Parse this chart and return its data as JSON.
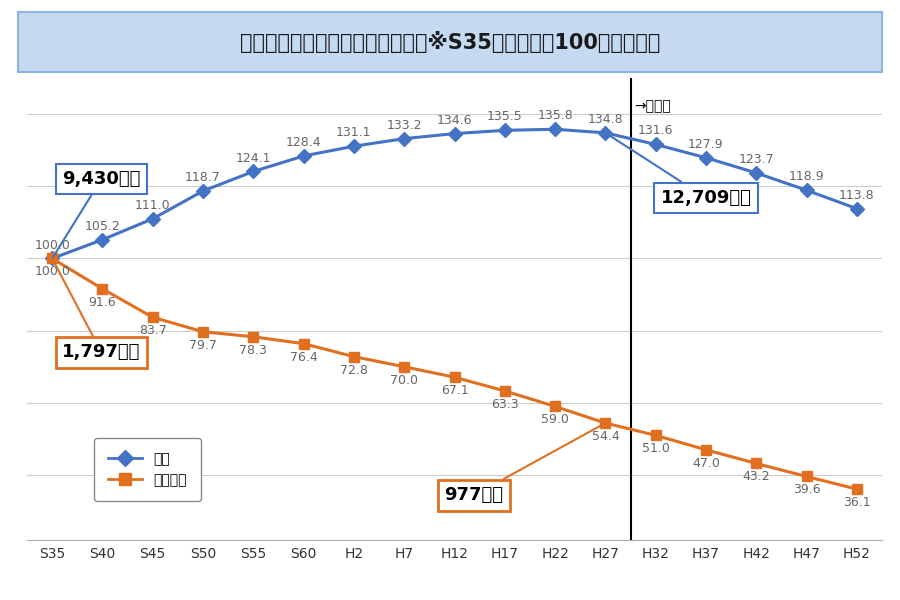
{
  "title": "人口の推移（全国・過疎地域）　※S35年の人口を100とした場合",
  "x_labels": [
    "S35",
    "S40",
    "S45",
    "S50",
    "S55",
    "S60",
    "H2",
    "H7",
    "H12",
    "H17",
    "H22",
    "H27",
    "H32",
    "H37",
    "H42",
    "H47",
    "H52"
  ],
  "zenkoku_values": [
    100.0,
    105.2,
    111.0,
    118.7,
    124.1,
    128.4,
    131.1,
    133.2,
    134.6,
    135.5,
    135.8,
    134.8,
    131.6,
    127.9,
    123.7,
    118.9,
    113.8
  ],
  "kasho_values": [
    100.0,
    91.6,
    83.7,
    79.7,
    78.3,
    76.4,
    72.8,
    70.0,
    67.1,
    63.3,
    59.0,
    54.4,
    51.0,
    47.0,
    43.2,
    39.6,
    36.1
  ],
  "zenkoku_color": "#4472C4",
  "kasho_color": "#E07020",
  "background_color": "#FFFFFF",
  "title_bg_color": "#C5D9F1",
  "title_border_color": "#8EB4E3",
  "grid_color": "#CCCCCC",
  "vertical_line_x": 11.5,
  "zenkoku_label": "全国",
  "kasho_label": "過疎地域",
  "label_9430": "9,430万人",
  "label_1797": "1,797万人",
  "label_12709": "12,709万人",
  "label_977": "977万人",
  "label_suikeichi": "→推計値",
  "ylim_min": 22,
  "ylim_max": 150,
  "data_fontsize": 9,
  "annotation_fontsize": 13
}
